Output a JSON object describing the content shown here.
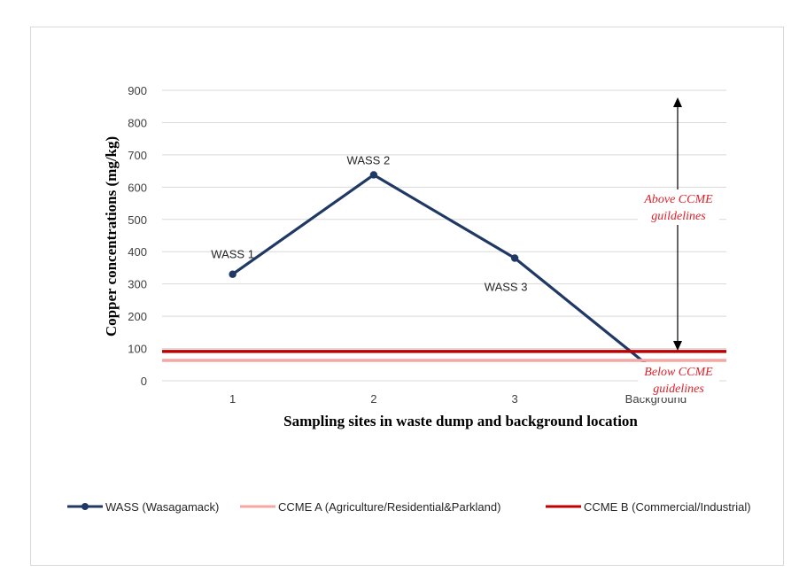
{
  "chart_data": {
    "type": "line",
    "title": "",
    "xlabel": "Sampling sites in waste dump and background location",
    "ylabel": "Copper concentrations (mg/kg)",
    "categories": [
      "1",
      "2",
      "3",
      "Background"
    ],
    "ylim": [
      0,
      900
    ],
    "yticks": [
      0,
      100,
      200,
      300,
      400,
      500,
      600,
      700,
      800,
      900
    ],
    "grid": true,
    "legend_position": "bottom",
    "series": [
      {
        "name": "WASS (Wasagamack)",
        "values": [
          330,
          638,
          380,
          28
        ],
        "color": "#1f3864",
        "point_labels": [
          "WASS 1",
          "WASS 2",
          "WASS 3",
          ""
        ]
      },
      {
        "name": "CCME A (Agriculture/Residential&Parkland)",
        "values": [
          63,
          63,
          63,
          63
        ],
        "color": "#f4a7a3",
        "style": "constant-line"
      },
      {
        "name": "CCME B (Commercial/Industrial)",
        "values": [
          91,
          91,
          91,
          91
        ],
        "color": "#c00000",
        "style": "constant-line"
      }
    ],
    "annotations": [
      {
        "text_lines": [
          "Above CCME",
          "guildelines"
        ],
        "arrow": "up"
      },
      {
        "text_lines": [
          "Below CCME",
          "guidelines"
        ],
        "arrow": "down"
      }
    ]
  }
}
